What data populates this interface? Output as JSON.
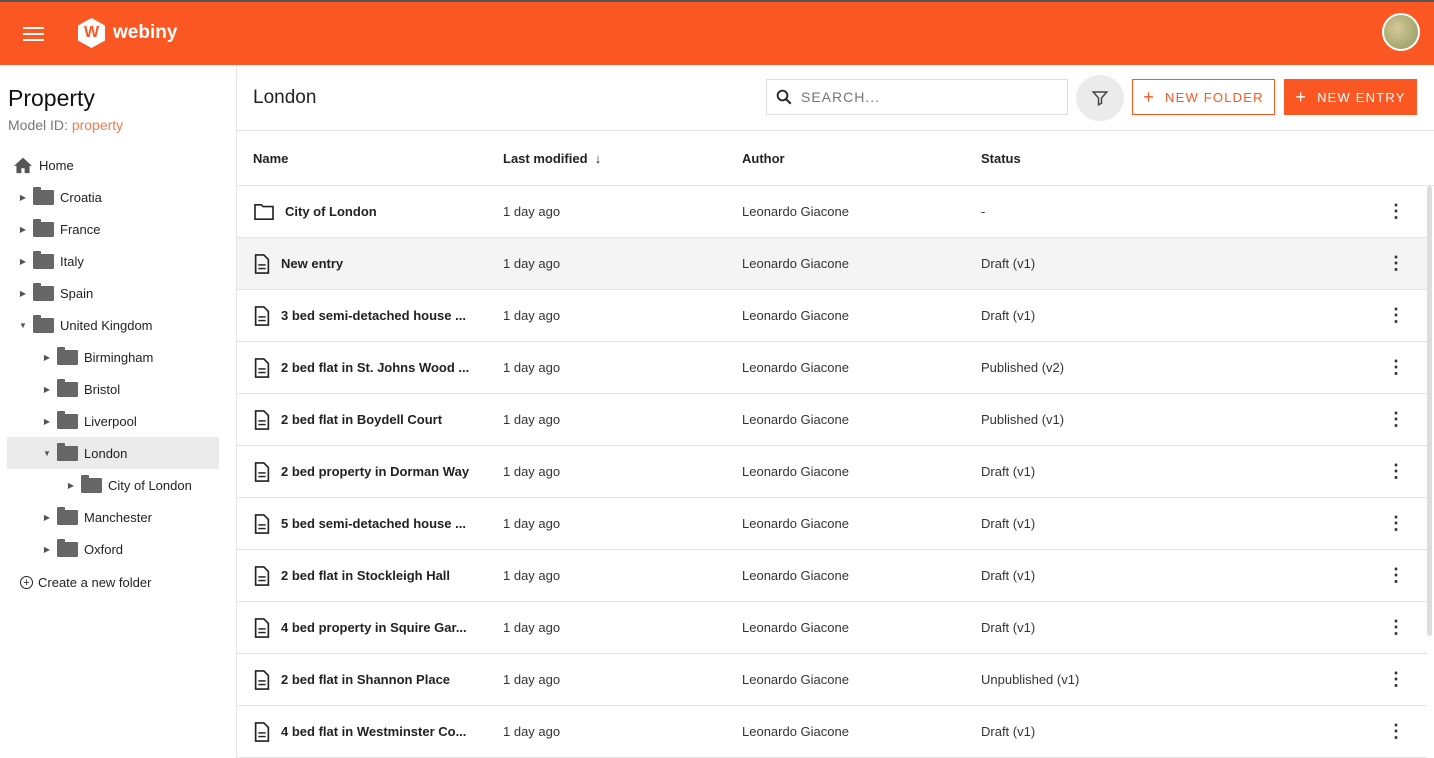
{
  "brand": {
    "name": "webiny",
    "color": "#fa5723"
  },
  "sidebar": {
    "title": "Property",
    "model_id_label": "Model ID:",
    "model_id": "property",
    "tree": [
      {
        "label": "Home",
        "level": 0,
        "type": "home"
      },
      {
        "label": "Croatia",
        "level": 1,
        "type": "folder",
        "expanded": false
      },
      {
        "label": "France",
        "level": 1,
        "type": "folder",
        "expanded": false
      },
      {
        "label": "Italy",
        "level": 1,
        "type": "folder",
        "expanded": false
      },
      {
        "label": "Spain",
        "level": 1,
        "type": "folder",
        "expanded": false
      },
      {
        "label": "United Kingdom",
        "level": 1,
        "type": "folder",
        "expanded": true
      },
      {
        "label": "Birmingham",
        "level": 2,
        "type": "folder",
        "expanded": false
      },
      {
        "label": "Bristol",
        "level": 2,
        "type": "folder",
        "expanded": false
      },
      {
        "label": "Liverpool",
        "level": 2,
        "type": "folder",
        "expanded": false
      },
      {
        "label": "London",
        "level": 2,
        "type": "folder",
        "expanded": true,
        "selected": true
      },
      {
        "label": "City of London",
        "level": 3,
        "type": "folder",
        "expanded": false
      },
      {
        "label": "Manchester",
        "level": 2,
        "type": "folder",
        "expanded": false
      },
      {
        "label": "Oxford",
        "level": 2,
        "type": "folder",
        "expanded": false
      }
    ],
    "create_folder": "Create a new folder"
  },
  "main": {
    "title": "London",
    "search_placeholder": "SEARCH...",
    "new_folder": "NEW FOLDER",
    "new_entry": "NEW ENTRY",
    "columns": [
      "Name",
      "Last modified",
      "Author",
      "Status"
    ],
    "sort_indicator": "↓",
    "rows": [
      {
        "name": "City of London",
        "type": "folder",
        "modified": "1 day ago",
        "author": "Leonardo Giacone",
        "status": "-"
      },
      {
        "name": "New entry",
        "type": "entry",
        "modified": "1 day ago",
        "author": "Leonardo Giacone",
        "status": "Draft (v1)",
        "hovered": true
      },
      {
        "name": "3 bed semi-detached house ...",
        "type": "entry",
        "modified": "1 day ago",
        "author": "Leonardo Giacone",
        "status": "Draft (v1)"
      },
      {
        "name": "2 bed flat in St. Johns Wood ...",
        "type": "entry",
        "modified": "1 day ago",
        "author": "Leonardo Giacone",
        "status": "Published (v2)"
      },
      {
        "name": "2 bed flat in Boydell Court",
        "type": "entry",
        "modified": "1 day ago",
        "author": "Leonardo Giacone",
        "status": "Published (v1)"
      },
      {
        "name": "2 bed property in Dorman Way",
        "type": "entry",
        "modified": "1 day ago",
        "author": "Leonardo Giacone",
        "status": "Draft (v1)"
      },
      {
        "name": "5 bed semi-detached house ...",
        "type": "entry",
        "modified": "1 day ago",
        "author": "Leonardo Giacone",
        "status": "Draft (v1)"
      },
      {
        "name": "2 bed flat in Stockleigh Hall",
        "type": "entry",
        "modified": "1 day ago",
        "author": "Leonardo Giacone",
        "status": "Draft (v1)"
      },
      {
        "name": "4 bed property in Squire Gar...",
        "type": "entry",
        "modified": "1 day ago",
        "author": "Leonardo Giacone",
        "status": "Draft (v1)"
      },
      {
        "name": "2 bed flat in Shannon Place",
        "type": "entry",
        "modified": "1 day ago",
        "author": "Leonardo Giacone",
        "status": "Unpublished (v1)"
      },
      {
        "name": "4 bed flat in Westminster Co...",
        "type": "entry",
        "modified": "1 day ago",
        "author": "Leonardo Giacone",
        "status": "Draft (v1)"
      }
    ]
  }
}
